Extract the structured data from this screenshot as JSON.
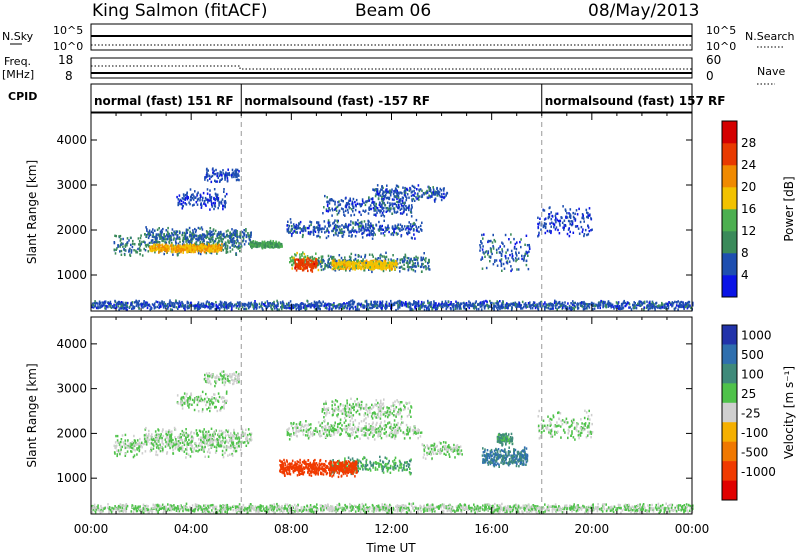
{
  "header": {
    "station": "King Salmon (fitACF)",
    "beam": "Beam 06",
    "date": "08/May/2013"
  },
  "strips": {
    "nsky_label": "N.Sky",
    "nsky_ticks": [
      "10^5",
      "10^0"
    ],
    "nsearch_label": "N.Search",
    "freq_label": "Freq.",
    "freq_unit": "[MHz]",
    "freq_ticks": [
      "18",
      "8"
    ],
    "nave_label": "Nave",
    "nave_ticks": [
      "60",
      "0"
    ],
    "cpid_label": "CPID",
    "cpid_segments": [
      {
        "text": "normal (fast) 151 RF",
        "start_hour": 0,
        "end_hour": 6
      },
      {
        "text": "normalsound (fast) -157 RF",
        "start_hour": 6,
        "end_hour": 18
      },
      {
        "text": "normalsound (fast) 157 RF",
        "start_hour": 18,
        "end_hour": 24
      }
    ]
  },
  "chart_data": [
    {
      "type": "heatmap",
      "quantity": "Power",
      "ylabel": "Slant Range [km]",
      "yticks": [
        1000,
        2000,
        3000,
        4000
      ],
      "ylim": [
        200,
        4600
      ],
      "xlim": [
        0,
        24
      ],
      "colorbar_label": "Power [dB]",
      "colorbar_ticks": [
        4,
        8,
        12,
        16,
        20,
        24,
        28
      ],
      "colorbar_colors": [
        "#0a14e6",
        "#1e4fb0",
        "#3a8a5a",
        "#4caf50",
        "#f2c200",
        "#f08a00",
        "#e83a00",
        "#d40000"
      ],
      "scatter_bands": [
        {
          "start": 0.9,
          "end": 6.0,
          "range": 1700,
          "width": 260,
          "value": 9
        },
        {
          "start": 2.1,
          "end": 6.4,
          "range": 1900,
          "width": 200,
          "value": 7
        },
        {
          "start": 3.4,
          "end": 5.4,
          "range": 2700,
          "width": 250,
          "value": 5
        },
        {
          "start": 4.5,
          "end": 5.9,
          "range": 3250,
          "width": 180,
          "value": 5
        },
        {
          "start": 7.8,
          "end": 13.2,
          "range": 2050,
          "width": 220,
          "value": 6
        },
        {
          "start": 9.2,
          "end": 12.8,
          "range": 2550,
          "width": 260,
          "value": 6
        },
        {
          "start": 11.2,
          "end": 14.2,
          "range": 2850,
          "width": 200,
          "value": 6
        },
        {
          "start": 7.9,
          "end": 9.2,
          "range": 1350,
          "width": 240,
          "value": 14
        },
        {
          "start": 9.0,
          "end": 13.5,
          "range": 1300,
          "width": 230,
          "value": 8
        },
        {
          "start": 15.5,
          "end": 17.5,
          "range": 1500,
          "width": 450,
          "value": 6
        },
        {
          "start": 17.8,
          "end": 20.0,
          "range": 2200,
          "width": 380,
          "value": 5
        },
        {
          "start": 0.0,
          "end": 24.0,
          "range": 350,
          "width": 110,
          "value": 6
        }
      ],
      "hot_spots": [
        {
          "start": 2.3,
          "end": 5.2,
          "range": 1620,
          "width": 100,
          "value": 20
        },
        {
          "start": 8.1,
          "end": 9.0,
          "range": 1250,
          "width": 160,
          "value": 26
        },
        {
          "start": 9.6,
          "end": 12.2,
          "range": 1250,
          "width": 110,
          "value": 18
        },
        {
          "start": 6.3,
          "end": 7.6,
          "range": 1700,
          "width": 90,
          "value": 12
        }
      ]
    },
    {
      "type": "heatmap",
      "quantity": "Velocity",
      "ylabel": "Slant Range [km]",
      "yticks": [
        1000,
        2000,
        3000,
        4000
      ],
      "ylim": [
        200,
        4600
      ],
      "xlim": [
        0,
        24
      ],
      "colorbar_label": "Velocity [m s⁻¹]",
      "colorbar_ticks": [
        1000,
        500,
        100,
        25,
        -25,
        -100,
        -500,
        -1000
      ],
      "colorbar_colors": [
        "#2233aa",
        "#2f6fae",
        "#3f8a7a",
        "#4fc24a",
        "#cfcfcf",
        "#f5b000",
        "#f07800",
        "#f03a00",
        "#e00000"
      ],
      "scatter_bands": [
        {
          "start": 0.9,
          "end": 6.0,
          "range": 1750,
          "width": 280,
          "value": 0
        },
        {
          "start": 2.1,
          "end": 6.4,
          "range": 1950,
          "width": 220,
          "value": 0
        },
        {
          "start": 3.4,
          "end": 5.4,
          "range": 2750,
          "width": 250,
          "value": 0
        },
        {
          "start": 4.5,
          "end": 5.9,
          "range": 3250,
          "width": 180,
          "value": 0
        },
        {
          "start": 7.8,
          "end": 13.2,
          "range": 2100,
          "width": 220,
          "value": 0
        },
        {
          "start": 9.2,
          "end": 12.8,
          "range": 2550,
          "width": 260,
          "value": 0
        },
        {
          "start": 9.5,
          "end": 12.8,
          "range": 1300,
          "width": 210,
          "value": 60
        },
        {
          "start": 13.2,
          "end": 14.8,
          "range": 1650,
          "width": 200,
          "value": 0
        },
        {
          "start": 17.8,
          "end": 20.0,
          "range": 2200,
          "width": 360,
          "value": 0
        },
        {
          "start": 0.0,
          "end": 24.0,
          "range": 350,
          "width": 110,
          "value": 0
        }
      ],
      "hot_spots": [
        {
          "start": 7.5,
          "end": 10.6,
          "range": 1250,
          "width": 200,
          "value": -400
        },
        {
          "start": 15.6,
          "end": 17.4,
          "range": 1500,
          "width": 230,
          "value": 300
        },
        {
          "start": 16.2,
          "end": 16.8,
          "range": 1900,
          "width": 150,
          "value": 90
        }
      ]
    }
  ],
  "xaxis": {
    "tick_labels": [
      "00:00",
      "04:00",
      "08:00",
      "12:00",
      "16:00",
      "20:00",
      "00:00"
    ],
    "label": "Time UT"
  }
}
